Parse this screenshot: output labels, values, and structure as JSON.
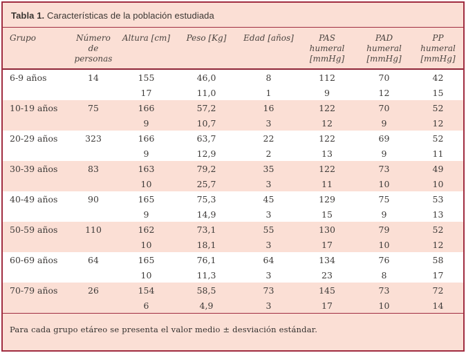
{
  "title": {
    "label": "Tabla 1.",
    "text": " Características de la población estudiada"
  },
  "colors": {
    "frame_border": "#9f2b3f",
    "band_pink": "#fbdfd5",
    "band_white": "#ffffff",
    "header_rule": "#8e2335",
    "text": "#3d3a38"
  },
  "footnote": "Para cada grupo etáreo se presenta el valor medio ± desviación estándar.",
  "chart_data": {
    "type": "table",
    "title": "Tabla 1. Características de la población estudiada",
    "note": "Para cada grupo etáreo se presenta el valor medio ± desviación estándar.",
    "columns": [
      "Grupo",
      "Número de personas",
      "Altura [cm]",
      "Peso [Kg]",
      "Edad [años]",
      "PAS humeral [mmHg]",
      "PAD humeral [mmHg]",
      "PP humeral [mmHg]"
    ],
    "rows": [
      [
        "6-9 años",
        "14",
        "155",
        "46,0",
        "8",
        "112",
        "70",
        "42"
      ],
      [
        "",
        "",
        "17",
        "11,0",
        "1",
        "9",
        "12",
        "15"
      ],
      [
        "10-19 años",
        "75",
        "166",
        "57,2",
        "16",
        "122",
        "70",
        "52"
      ],
      [
        "",
        "",
        "9",
        "10,7",
        "3",
        "12",
        "9",
        "12"
      ],
      [
        "20-29 años",
        "323",
        "166",
        "63,7",
        "22",
        "122",
        "69",
        "52"
      ],
      [
        "",
        "",
        "9",
        "12,9",
        "2",
        "13",
        "9",
        "11"
      ],
      [
        "30-39 años",
        "83",
        "163",
        "79,2",
        "35",
        "122",
        "73",
        "49"
      ],
      [
        "",
        "",
        "10",
        "25,7",
        "3",
        "11",
        "10",
        "10"
      ],
      [
        "40-49 años",
        "90",
        "165",
        "75,3",
        "45",
        "129",
        "75",
        "53"
      ],
      [
        "",
        "",
        "9",
        "14,9",
        "3",
        "15",
        "9",
        "13"
      ],
      [
        "50-59 años",
        "110",
        "162",
        "73,1",
        "55",
        "130",
        "79",
        "52"
      ],
      [
        "",
        "",
        "10",
        "18,1",
        "3",
        "17",
        "10",
        "12"
      ],
      [
        "60-69 años",
        "64",
        "165",
        "76,1",
        "64",
        "134",
        "76",
        "58"
      ],
      [
        "",
        "",
        "10",
        "11,3",
        "3",
        "23",
        "8",
        "17"
      ],
      [
        "70-79 años",
        "26",
        "154",
        "58,5",
        "73",
        "145",
        "73",
        "72"
      ],
      [
        "",
        "",
        "6",
        "4,9",
        "3",
        "17",
        "10",
        "14"
      ]
    ]
  },
  "table": {
    "columns": [
      {
        "label": "Grupo",
        "sub": ""
      },
      {
        "label": "Número de",
        "sub": "personas"
      },
      {
        "label": "Altura [cm]",
        "sub": ""
      },
      {
        "label": "Peso [Kg]",
        "sub": ""
      },
      {
        "label": "Edad [años]",
        "sub": ""
      },
      {
        "label": "PAS humeral",
        "sub": "[mmHg]"
      },
      {
        "label": "PAD humeral",
        "sub": "[mmHg]"
      },
      {
        "label": "PP humeral",
        "sub": "[mmHg]"
      }
    ],
    "groups": [
      {
        "grupo": "6-9 años",
        "n": "14",
        "mean": [
          "155",
          "46,0",
          "8",
          "112",
          "70",
          "42"
        ],
        "sd": [
          "17",
          "11,0",
          "1",
          "9",
          "12",
          "15"
        ]
      },
      {
        "grupo": "10-19 años",
        "n": "75",
        "mean": [
          "166",
          "57,2",
          "16",
          "122",
          "70",
          "52"
        ],
        "sd": [
          "9",
          "10,7",
          "3",
          "12",
          "9",
          "12"
        ]
      },
      {
        "grupo": "20-29 años",
        "n": "323",
        "mean": [
          "166",
          "63,7",
          "22",
          "122",
          "69",
          "52"
        ],
        "sd": [
          "9",
          "12,9",
          "2",
          "13",
          "9",
          "11"
        ]
      },
      {
        "grupo": "30-39 años",
        "n": "83",
        "mean": [
          "163",
          "79,2",
          "35",
          "122",
          "73",
          "49"
        ],
        "sd": [
          "10",
          "25,7",
          "3",
          "11",
          "10",
          "10"
        ]
      },
      {
        "grupo": "40-49 años",
        "n": "90",
        "mean": [
          "165",
          "75,3",
          "45",
          "129",
          "75",
          "53"
        ],
        "sd": [
          "9",
          "14,9",
          "3",
          "15",
          "9",
          "13"
        ]
      },
      {
        "grupo": "50-59 años",
        "n": "110",
        "mean": [
          "162",
          "73,1",
          "55",
          "130",
          "79",
          "52"
        ],
        "sd": [
          "10",
          "18,1",
          "3",
          "17",
          "10",
          "12"
        ]
      },
      {
        "grupo": "60-69 años",
        "n": "64",
        "mean": [
          "165",
          "76,1",
          "64",
          "134",
          "76",
          "58"
        ],
        "sd": [
          "10",
          "11,3",
          "3",
          "23",
          "8",
          "17"
        ]
      },
      {
        "grupo": "70-79 años",
        "n": "26",
        "mean": [
          "154",
          "58,5",
          "73",
          "145",
          "73",
          "72"
        ],
        "sd": [
          "6",
          "4,9",
          "3",
          "17",
          "10",
          "14"
        ]
      }
    ]
  }
}
